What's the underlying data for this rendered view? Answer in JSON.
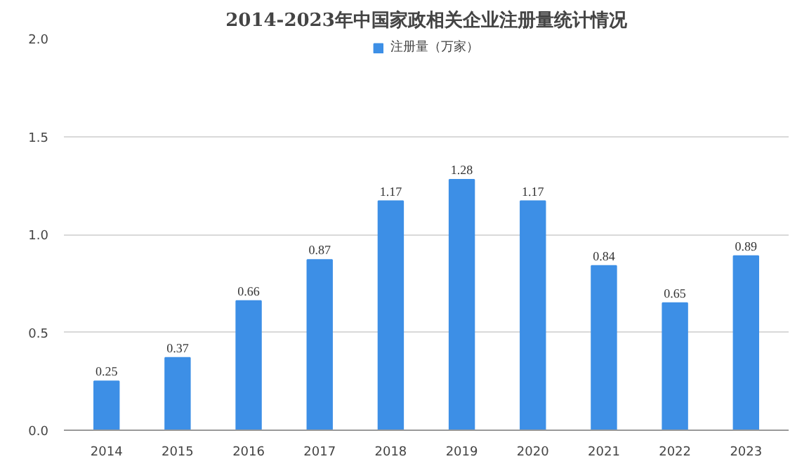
{
  "chart_data": {
    "type": "bar",
    "title": "2014-2023年中国家政相关企业注册量统计情况",
    "categories": [
      "2014",
      "2015",
      "2016",
      "2017",
      "2018",
      "2019",
      "2020",
      "2021",
      "2022",
      "2023"
    ],
    "series": [
      {
        "name": "注册量（万家）",
        "color": "#3d8fe6",
        "values": [
          0.25,
          0.37,
          0.66,
          0.87,
          1.17,
          1.28,
          1.17,
          0.84,
          0.65,
          0.89
        ]
      }
    ],
    "ylim": [
      0,
      2
    ],
    "yticks": [
      {
        "value": 0,
        "label": "0.0"
      },
      {
        "value": 0.5,
        "label": "0.5"
      },
      {
        "value": 1,
        "label": "1.0"
      },
      {
        "value": 1.5,
        "label": "1.5"
      },
      {
        "value": 2,
        "label": "2.0"
      }
    ],
    "grid": "y",
    "legend": "top",
    "data_labels": true
  }
}
